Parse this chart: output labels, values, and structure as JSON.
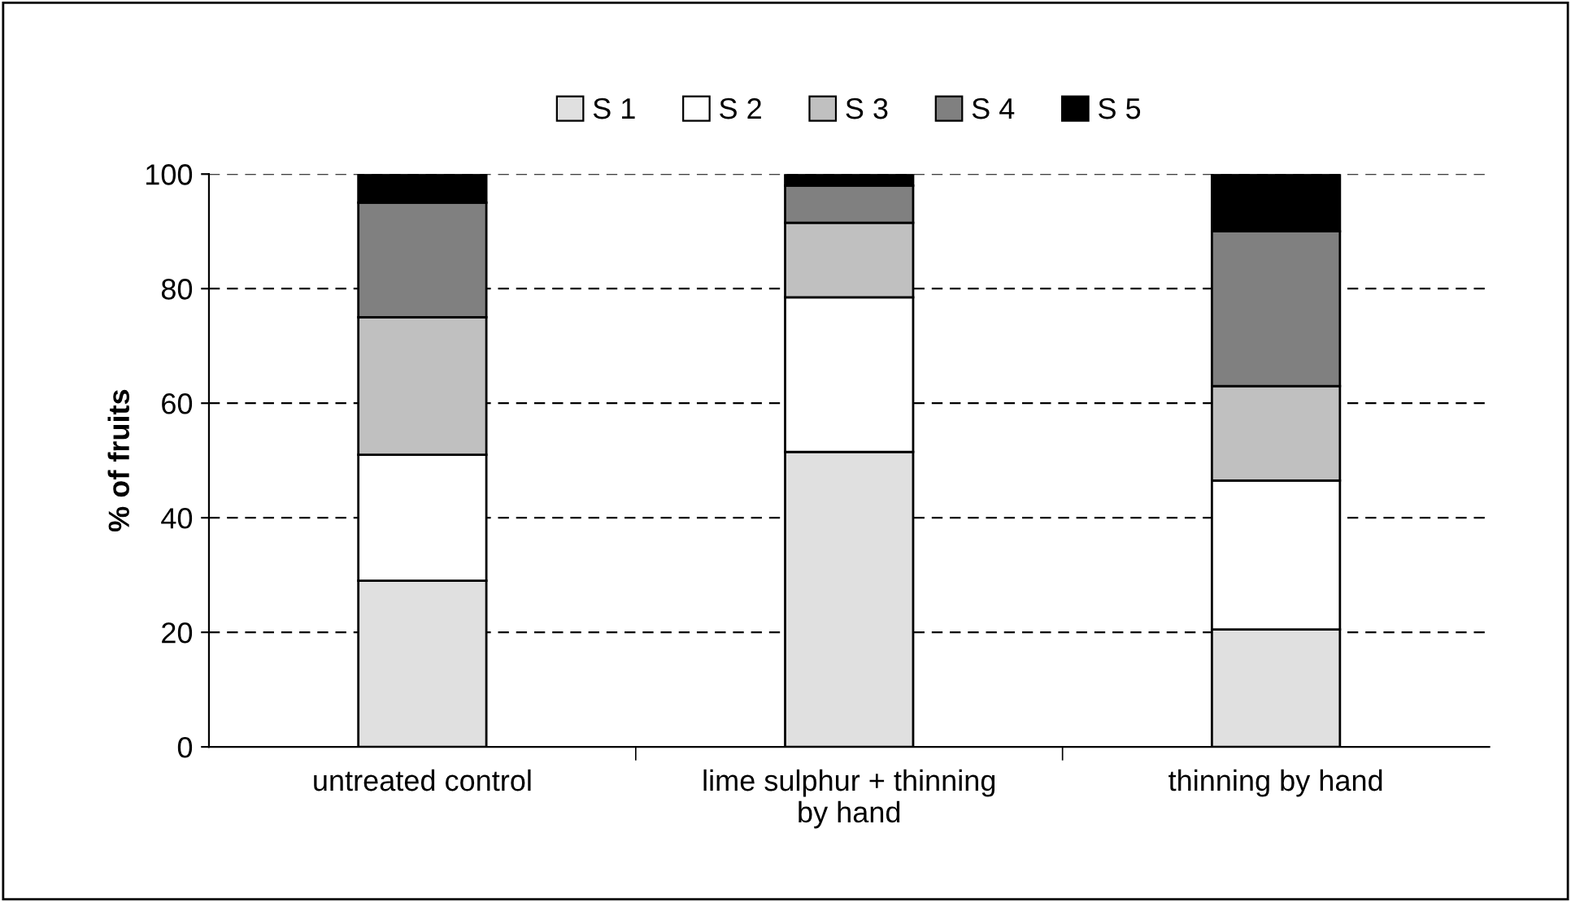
{
  "chart_data": {
    "type": "bar",
    "stacked": true,
    "ylabel": "% of fruits",
    "categories": [
      "untreated control",
      "lime sulphur + thinning\nby hand",
      "thinning by hand"
    ],
    "series": [
      {
        "name": "S 1",
        "color": "#e0e0e0",
        "values": [
          29,
          51.5,
          20.5
        ]
      },
      {
        "name": "S 2",
        "color": "#ffffff",
        "values": [
          22,
          27,
          26
        ]
      },
      {
        "name": "S 3",
        "color": "#c0c0c0",
        "values": [
          24,
          13,
          16.5
        ]
      },
      {
        "name": "S 4",
        "color": "#808080",
        "values": [
          20,
          6.5,
          27
        ]
      },
      {
        "name": "S 5",
        "color": "#000000",
        "values": [
          5,
          2,
          10
        ]
      }
    ],
    "ylim": [
      0,
      100
    ],
    "yticks": [
      0,
      20,
      40,
      60,
      80,
      100
    ],
    "grid": "y",
    "legend": "top"
  }
}
